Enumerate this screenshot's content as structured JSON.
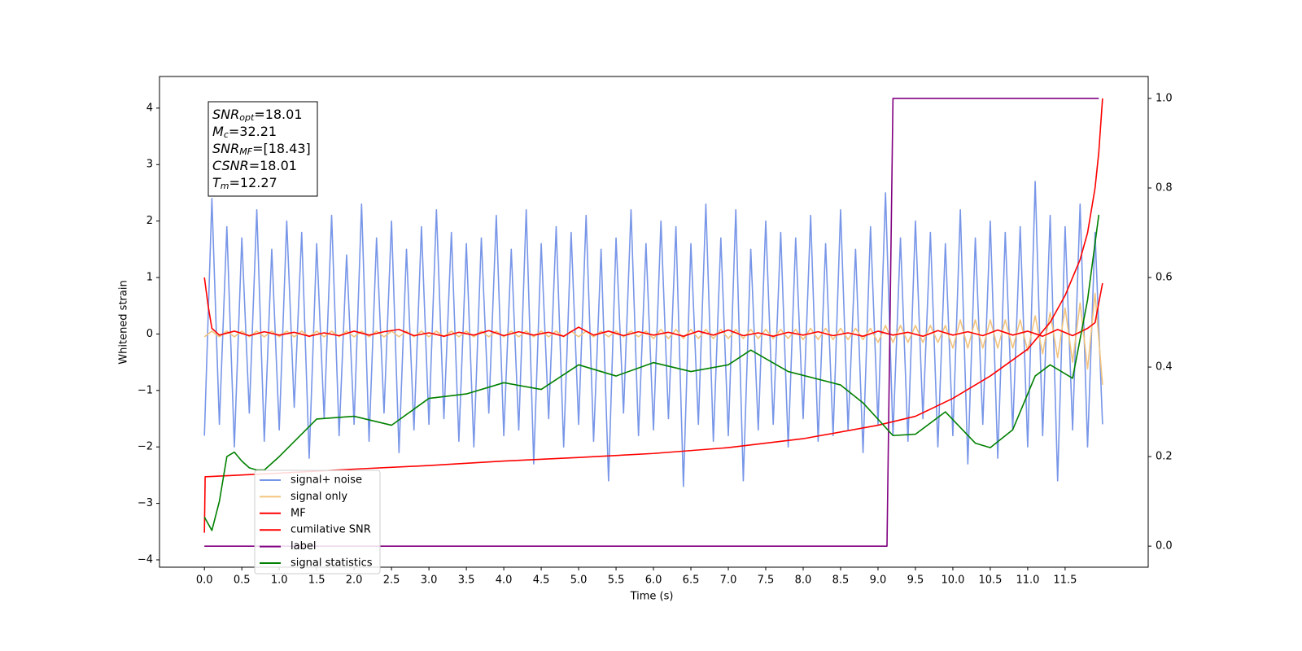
{
  "chart_data": {
    "type": "line",
    "xlabel": "Time (s)",
    "ylabel": "Whitened strain",
    "annotations": [
      {
        "main": "SNR",
        "sub": "opt",
        "rest": "=18.01"
      },
      {
        "main": "M",
        "sub": "c",
        "rest": "=32.21"
      },
      {
        "main": "SNR",
        "sub": "MF",
        "rest": "=[18.43]"
      },
      {
        "main": "CSNR",
        "rest": "=18.01"
      },
      {
        "main": "T",
        "sub": "m",
        "rest": "=12.27"
      }
    ],
    "xlim": [
      -0.6,
      12.61
    ],
    "ylim": [
      -4.13,
      4.56
    ],
    "y2lim": [
      -0.047,
      1.049
    ],
    "xticks": [
      {
        "value": 0,
        "label": "0.0"
      },
      0.5,
      {
        "value": 1,
        "label": "1.0"
      },
      1.5,
      {
        "value": 2,
        "label": "2.0"
      },
      2.5,
      {
        "value": 3,
        "label": "3.0"
      },
      3.5,
      {
        "value": 4,
        "label": "4.0"
      },
      4.5,
      {
        "value": 5,
        "label": "5.0"
      },
      5.5,
      {
        "value": 6,
        "label": "6.0"
      },
      6.5,
      {
        "value": 7,
        "label": "7.0"
      },
      7.5,
      {
        "value": 8,
        "label": "8.0"
      },
      8.5,
      {
        "value": 9,
        "label": "9.0"
      },
      9.5,
      {
        "value": 10,
        "label": "10.0"
      },
      10.5,
      {
        "value": 11,
        "label": "11.0"
      },
      11.5
    ],
    "yticks": [
      {
        "value": -4,
        "label": "−4"
      },
      {
        "value": -3,
        "label": "−3"
      },
      {
        "value": -2,
        "label": "−2"
      },
      {
        "value": -1,
        "label": "−1"
      },
      0,
      1,
      2,
      3,
      4
    ],
    "y2ticks": [
      {
        "value": 0,
        "label": "0.0"
      },
      0.2,
      0.4,
      0.6,
      0.8,
      {
        "value": 1,
        "label": "1.0"
      }
    ],
    "legend": "lower left",
    "series": [
      {
        "name": "signal+ noise",
        "color": "#7896e8",
        "x": [
          0,
          0.1,
          0.2,
          0.3,
          0.4,
          0.5,
          0.6,
          0.7,
          0.8,
          0.9,
          1,
          1.1,
          1.2,
          1.3,
          1.4,
          1.5,
          1.6,
          1.7,
          1.8,
          1.9,
          2,
          2.1,
          2.2,
          2.3,
          2.4,
          2.5,
          2.6,
          2.7,
          2.8,
          2.9,
          3,
          3.1,
          3.2,
          3.3,
          3.4,
          3.5,
          3.6,
          3.7,
          3.8,
          3.9,
          4,
          4.1,
          4.2,
          4.3,
          4.4,
          4.5,
          4.6,
          4.7,
          4.8,
          4.9,
          5,
          5.1,
          5.2,
          5.3,
          5.4,
          5.5,
          5.6,
          5.7,
          5.8,
          5.9,
          6,
          6.1,
          6.2,
          6.3,
          6.4,
          6.5,
          6.6,
          6.7,
          6.8,
          6.9,
          7,
          7.1,
          7.2,
          7.3,
          7.4,
          7.5,
          7.6,
          7.7,
          7.8,
          7.9,
          8,
          8.1,
          8.2,
          8.3,
          8.4,
          8.5,
          8.6,
          8.7,
          8.8,
          8.9,
          9,
          9.1,
          9.2,
          9.3,
          9.4,
          9.5,
          9.6,
          9.7,
          9.8,
          9.9,
          10,
          10.1,
          10.2,
          10.3,
          10.4,
          10.5,
          10.6,
          10.7,
          10.8,
          10.9,
          11,
          11.1,
          11.2,
          11.3,
          11.4,
          11.5,
          11.6,
          11.7,
          11.8,
          11.9,
          12
        ],
        "values": [
          -1.8,
          2.4,
          -1.6,
          1.9,
          -2.0,
          1.7,
          -1.4,
          2.2,
          -1.9,
          1.5,
          -1.7,
          2.0,
          -1.3,
          1.8,
          -2.2,
          1.6,
          -1.5,
          2.1,
          -1.8,
          1.4,
          -1.6,
          2.3,
          -1.9,
          1.7,
          -1.4,
          2.0,
          -2.1,
          1.5,
          -1.7,
          1.9,
          -1.6,
          2.2,
          -1.5,
          1.8,
          -1.9,
          1.6,
          -2.0,
          1.7,
          -1.4,
          2.1,
          -1.8,
          1.5,
          -1.7,
          2.2,
          -2.3,
          1.6,
          -1.5,
          1.9,
          -2.0,
          1.8,
          -1.6,
          2.1,
          -1.9,
          1.5,
          -2.6,
          1.7,
          -1.4,
          2.2,
          -1.8,
          1.6,
          -1.7,
          2.0,
          -1.5,
          1.9,
          -2.7,
          1.6,
          -1.6,
          2.3,
          -1.9,
          1.7,
          -1.8,
          2.2,
          -2.6,
          1.5,
          -1.7,
          2.0,
          -1.6,
          1.8,
          -2.0,
          1.7,
          -1.5,
          2.1,
          -1.9,
          1.6,
          -1.8,
          2.2,
          -1.7,
          1.5,
          -2.1,
          1.9,
          -1.6,
          2.5,
          -1.8,
          1.7,
          -1.9,
          2.0,
          -1.5,
          1.8,
          -2.0,
          1.6,
          -1.8,
          2.2,
          -2.3,
          1.7,
          -1.6,
          2.0,
          -2.2,
          1.8,
          -1.7,
          1.9,
          -2.0,
          2.7,
          -1.8,
          2.1,
          -2.6,
          1.9,
          -1.7,
          2.3,
          -2.0,
          1.8,
          -1.6
        ]
      },
      {
        "name": "signal only",
        "color": "#f2c47e",
        "x": [
          0,
          0.1,
          0.2,
          0.3,
          0.4,
          0.5,
          0.6,
          0.7,
          0.8,
          0.9,
          1,
          1.1,
          1.2,
          1.3,
          1.4,
          1.5,
          1.6,
          1.7,
          1.8,
          1.9,
          2,
          2.1,
          2.2,
          2.3,
          2.4,
          2.5,
          2.6,
          2.7,
          2.8,
          2.9,
          3,
          3.1,
          3.2,
          3.3,
          3.4,
          3.5,
          3.6,
          3.7,
          3.8,
          3.9,
          4,
          4.1,
          4.2,
          4.3,
          4.4,
          4.5,
          4.6,
          4.7,
          4.8,
          4.9,
          5,
          5.1,
          5.2,
          5.3,
          5.4,
          5.5,
          5.6,
          5.7,
          5.8,
          5.9,
          6,
          6.1,
          6.2,
          6.3,
          6.4,
          6.5,
          6.6,
          6.7,
          6.8,
          6.9,
          7,
          7.1,
          7.2,
          7.3,
          7.4,
          7.5,
          7.6,
          7.7,
          7.8,
          7.9,
          8,
          8.1,
          8.2,
          8.3,
          8.4,
          8.5,
          8.6,
          8.7,
          8.8,
          8.9,
          9,
          9.1,
          9.2,
          9.3,
          9.4,
          9.5,
          9.6,
          9.7,
          9.8,
          9.9,
          10,
          10.1,
          10.2,
          10.3,
          10.4,
          10.5,
          10.6,
          10.7,
          10.8,
          10.9,
          11,
          11.1,
          11.2,
          11.3,
          11.4,
          11.5,
          11.6,
          11.7,
          11.8,
          11.9,
          12
        ],
        "values": [
          -0.05,
          0.05,
          -0.05,
          0.05,
          -0.05,
          0.05,
          -0.05,
          0.05,
          -0.05,
          0.05,
          -0.05,
          0.05,
          -0.05,
          0.05,
          -0.05,
          0.05,
          -0.05,
          0.05,
          -0.05,
          0.05,
          -0.05,
          0.05,
          -0.05,
          0.05,
          -0.05,
          0.05,
          -0.05,
          0.05,
          -0.05,
          0.05,
          -0.05,
          0.05,
          -0.05,
          0.05,
          -0.05,
          0.05,
          -0.05,
          0.05,
          -0.05,
          0.05,
          -0.05,
          0.05,
          -0.05,
          0.05,
          -0.05,
          0.05,
          -0.05,
          0.05,
          -0.05,
          0.05,
          -0.05,
          0.05,
          -0.05,
          0.05,
          -0.05,
          0.05,
          -0.05,
          0.05,
          -0.05,
          0.05,
          -0.08,
          0.08,
          -0.08,
          0.08,
          -0.08,
          0.08,
          -0.08,
          0.08,
          -0.08,
          0.08,
          -0.08,
          0.08,
          -0.08,
          0.08,
          -0.08,
          0.08,
          -0.08,
          0.08,
          -0.08,
          0.08,
          -0.1,
          0.1,
          -0.1,
          0.1,
          -0.1,
          0.1,
          -0.1,
          0.1,
          -0.1,
          0.1,
          -0.15,
          0.15,
          -0.15,
          0.15,
          -0.15,
          0.15,
          -0.15,
          0.15,
          -0.15,
          0.15,
          -0.25,
          0.25,
          -0.25,
          0.25,
          -0.25,
          0.25,
          -0.25,
          0.25,
          -0.25,
          0.25,
          -0.3,
          0.32,
          -0.35,
          0.38,
          -0.42,
          0.46,
          -0.5,
          0.55,
          -0.62,
          0.72,
          -0.9
        ]
      },
      {
        "name": "MF",
        "color": "#ff0000",
        "x": [
          0,
          0.05,
          0.1,
          0.2,
          0.4,
          0.6,
          0.8,
          1,
          1.2,
          1.4,
          1.6,
          1.8,
          2,
          2.2,
          2.4,
          2.6,
          2.8,
          3,
          3.2,
          3.4,
          3.6,
          3.8,
          4,
          4.2,
          4.4,
          4.6,
          4.8,
          5,
          5.2,
          5.4,
          5.6,
          5.8,
          6,
          6.2,
          6.4,
          6.6,
          6.8,
          7,
          7.2,
          7.4,
          7.6,
          7.8,
          8,
          8.2,
          8.4,
          8.6,
          8.8,
          9,
          9.2,
          9.4,
          9.6,
          9.8,
          10,
          10.2,
          10.4,
          10.6,
          10.8,
          11,
          11.2,
          11.4,
          11.6,
          11.8,
          11.9,
          12
        ],
        "values": [
          1.0,
          0.5,
          0.1,
          -0.02,
          0.05,
          -0.03,
          0.04,
          -0.02,
          0.03,
          -0.04,
          0.02,
          -0.03,
          0.05,
          -0.02,
          0.04,
          0.08,
          -0.03,
          0.02,
          -0.04,
          0.03,
          -0.02,
          0.06,
          -0.03,
          0.04,
          -0.02,
          0.03,
          -0.04,
          0.12,
          -0.02,
          0.05,
          -0.03,
          0.04,
          -0.02,
          0.03,
          -0.04,
          0.05,
          -0.02,
          0.07,
          -0.03,
          0.02,
          -0.04,
          0.03,
          -0.02,
          0.04,
          -0.03,
          0.02,
          -0.04,
          0.05,
          -0.02,
          0.03,
          -0.04,
          0.06,
          -0.02,
          0.04,
          -0.03,
          0.07,
          -0.02,
          0.05,
          -0.04,
          0.08,
          -0.03,
          0.1,
          0.2,
          0.9
        ]
      },
      {
        "name": "cumilative SNR",
        "color": "#ff0000",
        "axis": "y2",
        "x": [
          0,
          0.01,
          1,
          2,
          3,
          4,
          5,
          6,
          7,
          8,
          9,
          9.5,
          10,
          10.5,
          11,
          11.3,
          11.5,
          11.7,
          11.8,
          11.9,
          11.95,
          12
        ],
        "values": [
          0.03,
          0.155,
          0.163,
          0.172,
          0.18,
          0.19,
          0.198,
          0.207,
          0.22,
          0.24,
          0.27,
          0.29,
          0.33,
          0.38,
          0.44,
          0.5,
          0.56,
          0.64,
          0.7,
          0.8,
          0.88,
          1.0
        ]
      },
      {
        "name": "label",
        "color": "#800080",
        "axis": "y2",
        "x": [
          0,
          9.12,
          9.2,
          11.95
        ],
        "values": [
          0,
          0,
          1,
          1
        ]
      },
      {
        "name": "signal statistics",
        "color": "#008000",
        "axis": "y2",
        "x": [
          0,
          0.1,
          0.2,
          0.3,
          0.4,
          0.5,
          0.6,
          0.7,
          0.8,
          1.0,
          1.5,
          2.0,
          2.5,
          3.0,
          3.5,
          4.0,
          4.5,
          5.0,
          5.5,
          6.0,
          6.5,
          7.0,
          7.3,
          7.8,
          8.5,
          8.8,
          9.2,
          9.5,
          9.9,
          10.3,
          10.5,
          10.8,
          11.1,
          11.3,
          11.6,
          11.8,
          11.95
        ],
        "values": [
          0.065,
          0.035,
          0.1,
          0.2,
          0.21,
          0.19,
          0.175,
          0.17,
          0.17,
          0.2,
          0.284,
          0.29,
          0.27,
          0.33,
          0.34,
          0.365,
          0.35,
          0.405,
          0.38,
          0.41,
          0.39,
          0.405,
          0.438,
          0.39,
          0.36,
          0.32,
          0.247,
          0.25,
          0.3,
          0.23,
          0.22,
          0.26,
          0.38,
          0.405,
          0.375,
          0.55,
          0.74
        ]
      }
    ]
  }
}
